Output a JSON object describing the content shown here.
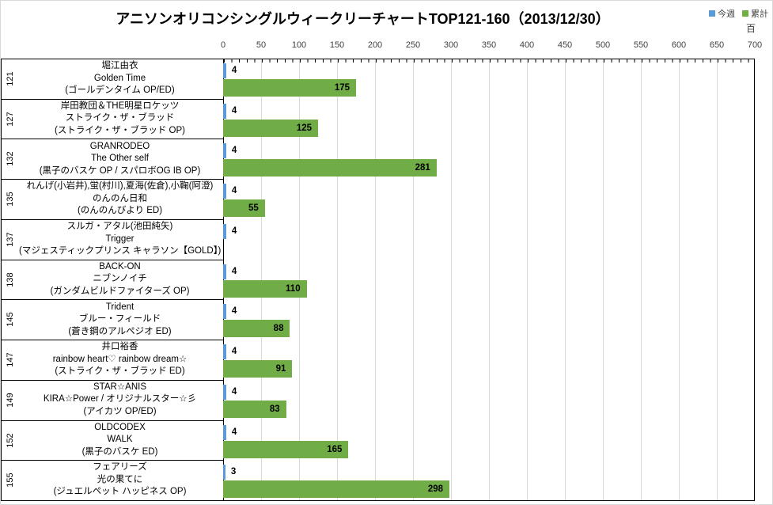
{
  "title": "アニソンオリコンシングルウィークリーチャートTOP121-160（2013/12/30）",
  "legend": {
    "items": [
      {
        "name": "this-week",
        "label": "今週",
        "color": "#5B9BD5"
      },
      {
        "name": "cumulative",
        "label": "累計",
        "color": "#70AD47"
      }
    ],
    "unit_label": "百"
  },
  "colors": {
    "this_week_bar": "#5B9BD5",
    "cumulative_bar": "#70AD47",
    "gridline": "#D9D9D9",
    "axis_line": "#000000",
    "tick_text": "#404040",
    "label_text": "#000000"
  },
  "axis": {
    "min": 0,
    "max": 700,
    "major_step": 50,
    "minor_step": 10,
    "tick_labels": [
      "0",
      "50",
      "100",
      "150",
      "200",
      "250",
      "300",
      "350",
      "400",
      "450",
      "500",
      "550",
      "600",
      "650",
      "700"
    ]
  },
  "chart_data": {
    "type": "bar",
    "orientation": "horizontal",
    "title": "アニソンオリコンシングルウィークリーチャートTOP121-160（2013/12/30）",
    "legend_position": "top-right",
    "value_axis": {
      "min": 0,
      "max": 700,
      "step": 50,
      "display_unit": "百"
    },
    "series_names": [
      "今週",
      "累計"
    ],
    "rows": [
      {
        "rank": "121",
        "artist": "堀江由衣",
        "song": "Golden Time",
        "tieup": "(ゴールデンタイム OP/ED)",
        "this_week": 4,
        "cumulative": 175
      },
      {
        "rank": "127",
        "artist": "岸田教団＆THE明星ロケッツ",
        "song": "ストライク・ザ・ブラッド",
        "tieup": "(ストライク・ザ・ブラッド OP)",
        "this_week": 4,
        "cumulative": 125
      },
      {
        "rank": "132",
        "artist": "GRANRODEO",
        "song": "The Other self",
        "tieup": "(黒子のバスケ OP / スパロボOG IB OP)",
        "this_week": 4,
        "cumulative": 281
      },
      {
        "rank": "135",
        "artist": "れんげ(小岩井),蛍(村川),夏海(佐倉),小鞠(阿澄)",
        "song": "のんのん日和",
        "tieup": "(のんのんびより ED)",
        "this_week": 4,
        "cumulative": 55
      },
      {
        "rank": "137",
        "artist": "スルガ・アタル(池田純矢)",
        "song": "Trigger",
        "tieup": "(マジェスティックプリンス キャラソン【GOLD】)",
        "this_week": 4,
        "cumulative": null
      },
      {
        "rank": "138",
        "artist": "BACK-ON",
        "song": "ニブンノイチ",
        "tieup": "(ガンダムビルドファイターズ OP)",
        "this_week": 4,
        "cumulative": 110
      },
      {
        "rank": "145",
        "artist": "Trident",
        "song": "ブルー・フィールド",
        "tieup": "(蒼き鋼のアルペジオ ED)",
        "this_week": 4,
        "cumulative": 88
      },
      {
        "rank": "147",
        "artist": "井口裕香",
        "song": "rainbow heart♡ rainbow dream☆",
        "tieup": "(ストライク・ザ・ブラッド ED)",
        "this_week": 4,
        "cumulative": 91
      },
      {
        "rank": "149",
        "artist": "STAR☆ANIS",
        "song": "KIRA☆Power / オリジナルスター☆彡",
        "tieup": "(アイカツ OP/ED)",
        "this_week": 4,
        "cumulative": 83
      },
      {
        "rank": "152",
        "artist": "OLDCODEX",
        "song": "WALK",
        "tieup": "(黒子のバスケ ED)",
        "this_week": 4,
        "cumulative": 165
      },
      {
        "rank": "155",
        "artist": "フェアリーズ",
        "song": "光の果てに",
        "tieup": "(ジュエルペット ハッピネス OP)",
        "this_week": 3,
        "cumulative": 298
      }
    ]
  }
}
